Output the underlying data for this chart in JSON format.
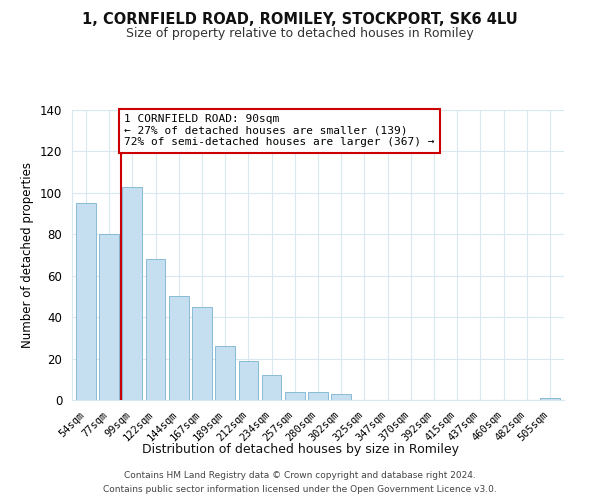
{
  "title": "1, CORNFIELD ROAD, ROMILEY, STOCKPORT, SK6 4LU",
  "subtitle": "Size of property relative to detached houses in Romiley",
  "xlabel": "Distribution of detached houses by size in Romiley",
  "ylabel": "Number of detached properties",
  "bar_labels": [
    "54sqm",
    "77sqm",
    "99sqm",
    "122sqm",
    "144sqm",
    "167sqm",
    "189sqm",
    "212sqm",
    "234sqm",
    "257sqm",
    "280sqm",
    "302sqm",
    "325sqm",
    "347sqm",
    "370sqm",
    "392sqm",
    "415sqm",
    "437sqm",
    "460sqm",
    "482sqm",
    "505sqm"
  ],
  "bar_values": [
    95,
    80,
    103,
    68,
    50,
    45,
    26,
    19,
    12,
    4,
    4,
    3,
    0,
    0,
    0,
    0,
    0,
    0,
    0,
    0,
    1
  ],
  "bar_color": "#c6dff0",
  "bar_edge_color": "#7ab3d0",
  "vline_index": 1.5,
  "vline_color": "#cc0000",
  "ylim": [
    0,
    140
  ],
  "yticks": [
    0,
    20,
    40,
    60,
    80,
    100,
    120,
    140
  ],
  "annotation_title": "1 CORNFIELD ROAD: 90sqm",
  "annotation_line1": "← 27% of detached houses are smaller (139)",
  "annotation_line2": "72% of semi-detached houses are larger (367) →",
  "annotation_box_color": "#ffffff",
  "annotation_box_edge": "#cc0000",
  "footer_line1": "Contains HM Land Registry data © Crown copyright and database right 2024.",
  "footer_line2": "Contains public sector information licensed under the Open Government Licence v3.0.",
  "background_color": "#ffffff",
  "grid_color": "#d8e8f0"
}
